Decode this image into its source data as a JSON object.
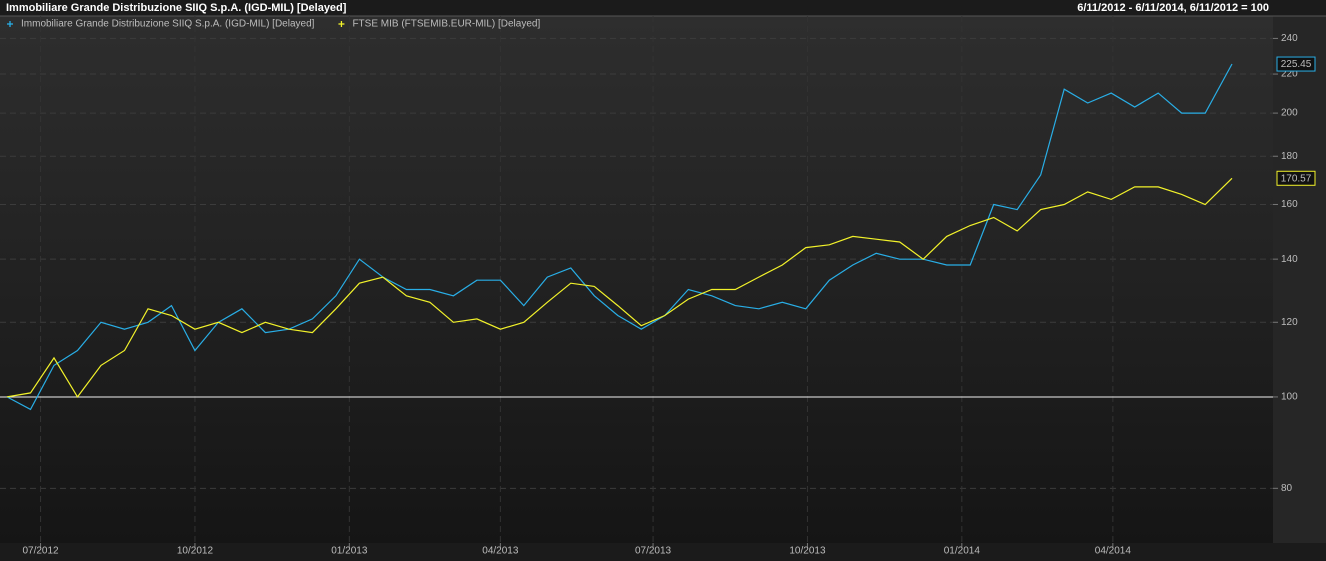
{
  "chart_data": {
    "type": "line",
    "title": "Immobiliare Grande Distribuzione SIIQ S.p.A. (IGD-MIL) [Delayed]",
    "subtitle": "6/11/2012 - 6/11/2014, 6/11/2012 = 100",
    "x": [
      "2012-06-11",
      "2012-06-25",
      "2012-07-09",
      "2012-07-23",
      "2012-08-06",
      "2012-08-20",
      "2012-09-03",
      "2012-09-17",
      "2012-10-01",
      "2012-10-15",
      "2012-10-29",
      "2012-11-12",
      "2012-11-26",
      "2012-12-10",
      "2012-12-24",
      "2013-01-07",
      "2013-01-21",
      "2013-02-04",
      "2013-02-18",
      "2013-03-04",
      "2013-03-18",
      "2013-04-01",
      "2013-04-15",
      "2013-04-29",
      "2013-05-13",
      "2013-05-27",
      "2013-06-10",
      "2013-06-24",
      "2013-07-08",
      "2013-07-22",
      "2013-08-05",
      "2013-08-19",
      "2013-09-02",
      "2013-09-16",
      "2013-09-30",
      "2013-10-14",
      "2013-10-28",
      "2013-11-11",
      "2013-11-25",
      "2013-12-09",
      "2013-12-23",
      "2014-01-06",
      "2014-01-20",
      "2014-02-03",
      "2014-02-17",
      "2014-03-03",
      "2014-03-17",
      "2014-03-31",
      "2014-04-14",
      "2014-04-28",
      "2014-05-12",
      "2014-05-26",
      "2014-06-11"
    ],
    "series": [
      {
        "name": "Immobiliare Grande Distribuzione SIIQ S.p.A. (IGD-MIL) [Delayed]",
        "color": "#29aee6",
        "values": [
          100,
          97,
          108,
          112,
          120,
          118,
          120,
          125,
          112,
          120,
          124,
          117,
          118,
          121,
          128,
          140,
          134,
          130,
          130,
          128,
          133,
          133,
          125,
          134,
          137,
          128,
          122,
          118,
          122,
          130,
          128,
          125,
          124,
          126,
          124,
          133,
          138,
          142,
          140,
          140,
          138,
          138,
          160,
          158,
          172,
          212,
          205,
          210,
          203,
          210,
          200,
          200,
          225.45
        ]
      },
      {
        "name": "FTSE MIB (FTSEMIB.EUR-MIL) [Delayed]",
        "color": "#f2f22a",
        "values": [
          100,
          101,
          110,
          100,
          108,
          112,
          124,
          122,
          118,
          120,
          117,
          120,
          118,
          117,
          124,
          132,
          134,
          128,
          126,
          120,
          121,
          118,
          120,
          126,
          132,
          131,
          125,
          119,
          122,
          127,
          130,
          130,
          134,
          138,
          144,
          145,
          148,
          147,
          146,
          140,
          148,
          152,
          155,
          150,
          158,
          160,
          165,
          162,
          167,
          167,
          164,
          160,
          170.57
        ]
      }
    ],
    "baseline": 100,
    "xlim": [
      "2012-06-11",
      "2014-06-11"
    ],
    "xticks": [
      {
        "value": "2012-07-01",
        "label": "07/2012"
      },
      {
        "value": "2012-10-01",
        "label": "10/2012"
      },
      {
        "value": "2013-01-01",
        "label": "01/2013"
      },
      {
        "value": "2013-04-01",
        "label": "04/2013"
      },
      {
        "value": "2013-07-01",
        "label": "07/2013"
      },
      {
        "value": "2013-10-01",
        "label": "10/2013"
      },
      {
        "value": "2014-01-01",
        "label": "01/2014"
      },
      {
        "value": "2014-04-01",
        "label": "04/2014"
      }
    ],
    "ylim": [
      70,
      248
    ],
    "yticks": [
      80,
      100,
      120,
      140,
      160,
      180,
      200,
      220,
      240
    ],
    "yscale": "log",
    "grid": true
  }
}
